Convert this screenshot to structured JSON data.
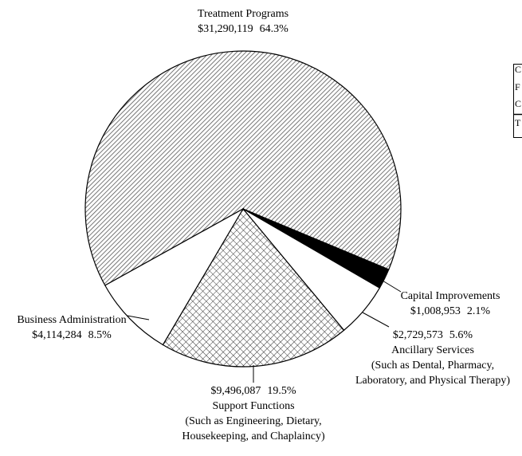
{
  "chart_data": {
    "type": "pie",
    "categories": [
      "Treatment Programs",
      "Capital Improvements",
      "Ancillary Services",
      "Support Functions",
      "Business Administration"
    ],
    "values": [
      31290119,
      1008953,
      2729573,
      9496087,
      4114284
    ],
    "value_labels": [
      "$31,290,119",
      "$1,008,953",
      "$2,729,573",
      "$9,496,087",
      "$4,114,284"
    ],
    "percents": [
      64.3,
      2.1,
      5.6,
      19.5,
      8.5
    ],
    "percent_labels": [
      "64.3%",
      "2.1%",
      "5.6%",
      "19.5%",
      "8.5%"
    ],
    "details": [
      [],
      [],
      [
        "(Such as Dental, Pharmacy,",
        "Laboratory, and Physical Therapy)"
      ],
      [
        "(Such as Engineering, Dietary,",
        "Housekeeping, and Chaplaincy)"
      ],
      []
    ],
    "fills": [
      "hatch",
      "#000000",
      "#ffffff",
      "crosshatch",
      "#ffffff"
    ],
    "legend_fragment": [
      "C",
      "F",
      "C",
      "T"
    ]
  }
}
